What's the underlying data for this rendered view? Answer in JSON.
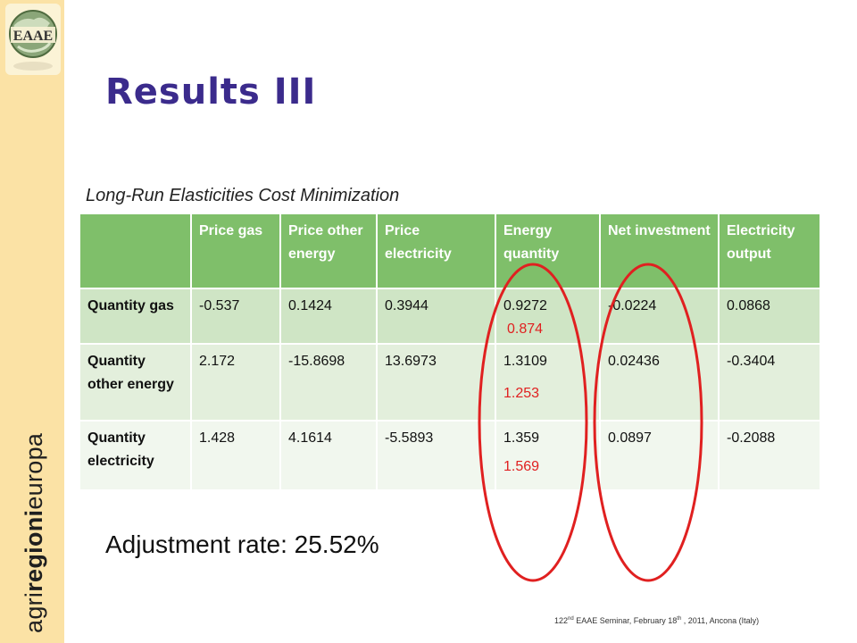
{
  "title": "Results III",
  "caption": "Long-Run Elasticities Cost Minimization",
  "table": {
    "headers": [
      "",
      "Price gas",
      "Price other energy",
      "Price electricity",
      "Energy quantity",
      "Net investment",
      "Electricity output"
    ],
    "rows": [
      {
        "label": "Quantity gas",
        "values": [
          "-0.537",
          "0.1424",
          "0.3944",
          "0.9272",
          "-0.0224",
          "0.0868"
        ],
        "highlight": "0.874"
      },
      {
        "label": "Quantity other energy",
        "values": [
          "2.172",
          "-15.8698",
          "13.6973",
          "1.3109",
          "0.02436",
          "-0.3404"
        ],
        "highlight": "1.253"
      },
      {
        "label": "Quantity electricity",
        "values": [
          "1.428",
          "4.1614",
          "-5.5893",
          "1.359",
          "0.0897",
          "-0.2088"
        ],
        "highlight": "1.569"
      }
    ]
  },
  "adjustment": "Adjustment rate: 25.52%",
  "sidebar": {
    "brand_prefix": "agri",
    "brand_bold": "regioni",
    "brand_suffix": "europa",
    "logo_text": "EAAE"
  },
  "footer": {
    "prefix": "122",
    "sup1": "nd",
    "mid": " EAAE Seminar, February 18",
    "sup2": "th",
    "suffix": " , 2011, Ancona (Italy)"
  },
  "colors": {
    "sidebar": "#fbe2a5",
    "title": "#3b2b8c",
    "header": "#7fbf6a",
    "highlight": "#e02020"
  }
}
